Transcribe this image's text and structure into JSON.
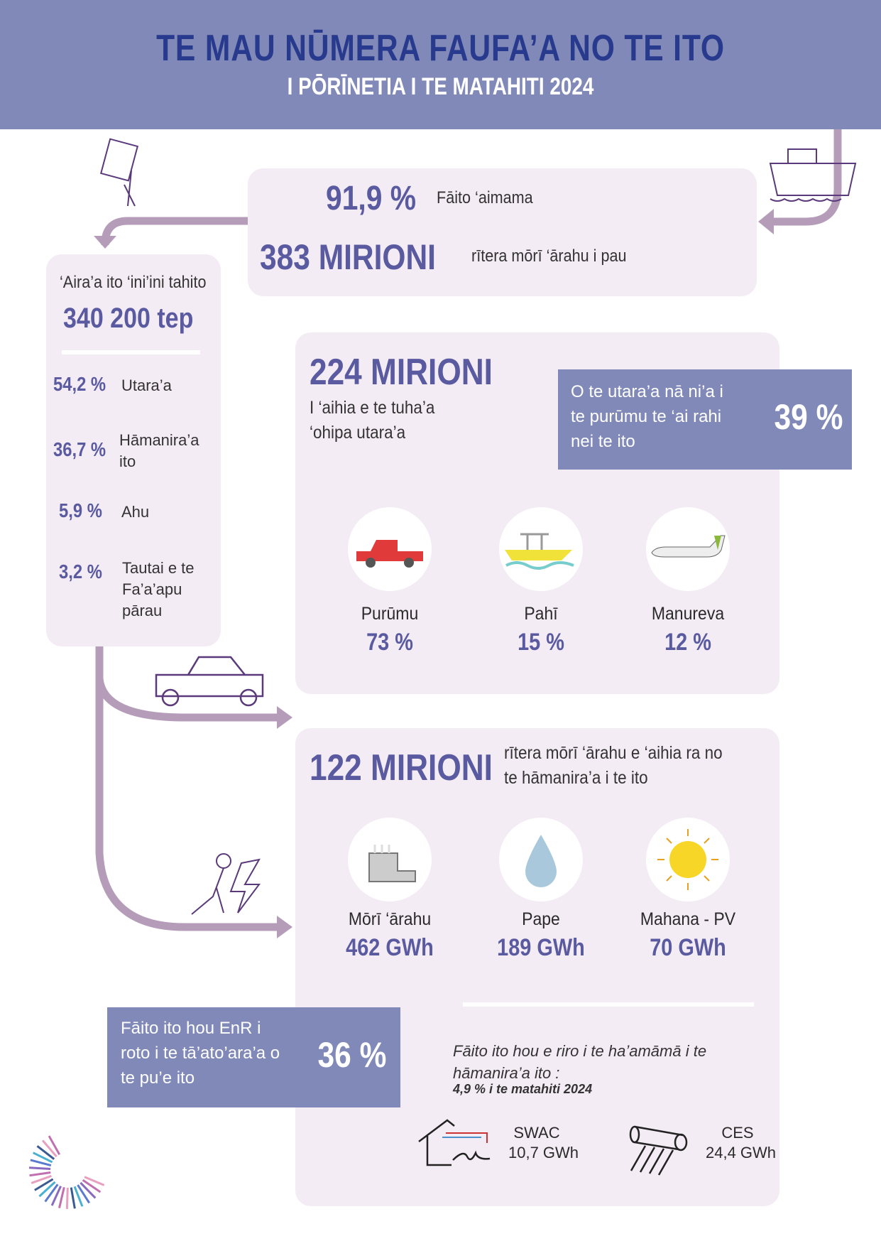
{
  "header": {
    "title": "TE MAU NŪMERA FAUFA’A NO TE ITO",
    "subtitle": "I PŌRĪNETIA I TE MATAHITI 2024"
  },
  "top": {
    "rate_value": "91,9 %",
    "rate_label": "Fāito ‘aimama",
    "fuel_value": "383  MIRIONI",
    "fuel_label": "rītera mōrī ‘ārahu i pau"
  },
  "primary": {
    "title": "‘Aira’a ito ‘ini’ini tahito",
    "total": "340 200 tep",
    "items": [
      {
        "pct": "54,2 %",
        "label": "Utara’a"
      },
      {
        "pct": "36,7 %",
        "label": "Hāmanira’a ito"
      },
      {
        "pct": "5,9 %",
        "label": "Ahu"
      },
      {
        "pct": "3,2 %",
        "label": "Tautai e te Fa’a’apu pārau"
      }
    ]
  },
  "transport": {
    "value": "224  MIRIONI",
    "desc": "I ‘aihia e te tuha’a ‘ohipa utara’a",
    "highlight": {
      "text": "O te utara’a nā ni’a i te purūmu te ‘ai rahi nei te ito",
      "value": "39 %"
    },
    "modes": [
      {
        "label": "Purūmu",
        "value": "73 %",
        "icon": "car-icon"
      },
      {
        "label": "Pahī",
        "value": "15 %",
        "icon": "boat-icon"
      },
      {
        "label": "Manureva",
        "value": "12 %",
        "icon": "airplane-icon"
      }
    ]
  },
  "electricity": {
    "value": "122  MIRIONI",
    "desc": "rītera mōrī ‘ārahu e ‘aihia ra no te hāmanira’a i te ito",
    "sources": [
      {
        "label": "Mōrī ‘ārahu",
        "value": "462 GWh",
        "icon": "factory-icon"
      },
      {
        "label": "Pape",
        "value": "189 GWh",
        "icon": "water-drop-icon"
      },
      {
        "label": "Mahana - PV",
        "value": "70 GWh",
        "icon": "sun-icon"
      }
    ],
    "savings_text": "Fāito ito hou e riro i te ha’amāmā i te hāmanira’a ito :",
    "savings_value": "4,9 %  i te matahiti 2024",
    "swac": {
      "label": "SWAC",
      "value": "10,7 GWh"
    },
    "ces": {
      "label": "CES",
      "value": "24,4 GWh"
    }
  },
  "renewable": {
    "text": "Fāito ito hou EnR i roto i te tā’ato’ara’a o te pu’e ito",
    "value": "36 %"
  },
  "colors": {
    "header": "#8189b8",
    "title": "#283a8e",
    "accent": "#5a5aa0",
    "panel": "#f4ecf4",
    "arrow": "#b59dba"
  }
}
